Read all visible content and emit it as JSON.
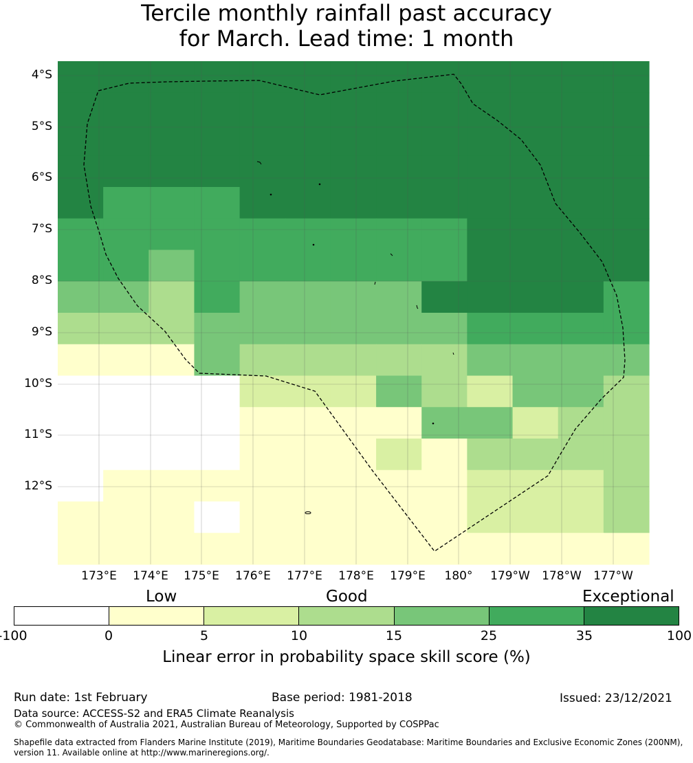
{
  "title": {
    "line1": "Tercile monthly rainfall past accuracy",
    "line2": "for March. Lead time: 1 month"
  },
  "map": {
    "lat_labels": [
      "4°S",
      "5°S",
      "6°S",
      "7°S",
      "8°S",
      "9°S",
      "10°S",
      "11°S",
      "12°S"
    ],
    "lon_labels": [
      "173°E",
      "174°E",
      "175°E",
      "176°E",
      "177°E",
      "178°E",
      "179°E",
      "180°",
      "179°W",
      "178°W",
      "177°W"
    ],
    "legend_colors": {
      "c0": "#ffffff",
      "c1": "#ffffcc",
      "c2": "#d9f0a3",
      "c3": "#addd8e",
      "c4": "#78c679",
      "c5": "#41ab5d",
      "c6": "#238443"
    },
    "skill_grid_rows": [
      "6666666666666",
      "6666666666666",
      "6666666666666",
      "6666666666666",
      "6555666666666",
      "5555555556666",
      "5545555556666",
      "4435444466665",
      "3334444445555",
      "1114333334444",
      "0000222432443",
      "0000111144233",
      "0000111213333",
      "0111111112223",
      "1110111112223",
      "1111111111111"
    ]
  },
  "colorbar": {
    "categories": [
      "Low",
      "Good",
      "Exceptional"
    ],
    "ticks": [
      "-100",
      "0",
      "5",
      "10",
      "15",
      "25",
      "35",
      "100"
    ],
    "label": "Linear error in probability space skill score (%)"
  },
  "footer": {
    "run_date": "Run date: 1st February",
    "base_period": "Base period: 1981-2018",
    "issued": "Issued: 23/12/2021",
    "data_source": "Data source: ACCESS-S2 and ERA5 Climate Reanalysis",
    "copyright": "© Commonwealth of Australia 2021, Australian Bureau of Meteorology, Supported by COSPPac",
    "shapefile_line1": "Shapefile data extracted from Flanders Marine Institute (2019), Maritime Boundaries Geodatabase: Maritime Boundaries and Exclusive Economic Zones (200NM),",
    "shapefile_line2": "version 11. Available online at http://www.marineregions.org/."
  }
}
